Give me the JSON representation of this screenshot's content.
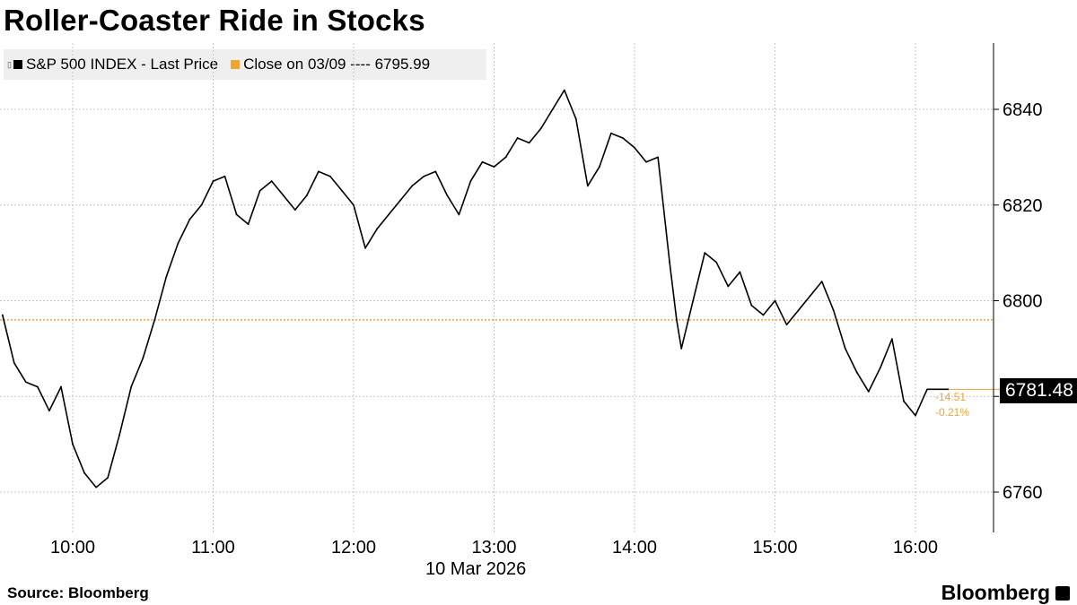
{
  "title": "Roller-Coaster Ride in Stocks",
  "legend": {
    "series_label": "S&P 500 INDEX - Last Price",
    "close_label": "Close on 03/09 ---- 6795.99"
  },
  "colors": {
    "series": "#000000",
    "close_line": "#f2a332",
    "grid": "#c8c8c8"
  },
  "footer": {
    "source": "Source: Bloomberg",
    "brand": "Bloomberg"
  },
  "last_price_label": "6781.48",
  "change_abs": "-14.51",
  "change_pct": "-0.21%",
  "chart_data": {
    "type": "line",
    "date_label": "10 Mar 2026",
    "x_ticks": [
      "10:00",
      "11:00",
      "12:00",
      "13:00",
      "14:00",
      "15:00",
      "16:00"
    ],
    "y_ticks": [
      6760,
      6780,
      6800,
      6820,
      6840
    ],
    "xlim": [
      "09:30",
      "16:30"
    ],
    "ylim": [
      6752,
      6855
    ],
    "grid": true,
    "legend_position": "top-left",
    "prev_close": 6795.99,
    "last_price": 6781.48,
    "series": [
      {
        "name": "S&P 500 INDEX - Last Price",
        "x": [
          "09:30",
          "09:35",
          "09:40",
          "09:45",
          "09:50",
          "09:55",
          "10:00",
          "10:05",
          "10:10",
          "10:15",
          "10:20",
          "10:25",
          "10:30",
          "10:35",
          "10:40",
          "10:45",
          "10:50",
          "10:55",
          "11:00",
          "11:05",
          "11:10",
          "11:15",
          "11:20",
          "11:25",
          "11:30",
          "11:35",
          "11:40",
          "11:45",
          "11:50",
          "11:55",
          "12:00",
          "12:05",
          "12:10",
          "12:15",
          "12:20",
          "12:25",
          "12:30",
          "12:35",
          "12:40",
          "12:45",
          "12:50",
          "12:55",
          "13:00",
          "13:05",
          "13:10",
          "13:15",
          "13:20",
          "13:25",
          "13:30",
          "13:35",
          "13:40",
          "13:45",
          "13:50",
          "13:55",
          "14:00",
          "14:05",
          "14:10",
          "14:15",
          "14:18",
          "14:20",
          "14:25",
          "14:30",
          "14:35",
          "14:40",
          "14:45",
          "14:50",
          "14:55",
          "15:00",
          "15:05",
          "15:10",
          "15:15",
          "15:20",
          "15:25",
          "15:30",
          "15:35",
          "15:40",
          "15:45",
          "15:50",
          "15:55",
          "16:00",
          "16:05"
        ],
        "values": [
          6797,
          6787,
          6783,
          6782,
          6777,
          6782,
          6770,
          6764,
          6761,
          6763,
          6772,
          6782,
          6788,
          6796,
          6805,
          6812,
          6817,
          6820,
          6825,
          6826,
          6818,
          6816,
          6823,
          6825,
          6822,
          6819,
          6822,
          6827,
          6826,
          6823,
          6820,
          6811,
          6815,
          6818,
          6821,
          6824,
          6826,
          6827,
          6822,
          6818,
          6825,
          6829,
          6828,
          6830,
          6834,
          6833,
          6836,
          6840,
          6844,
          6838,
          6824,
          6828,
          6835,
          6834,
          6832,
          6829,
          6830,
          6808,
          6796,
          6790,
          6800,
          6810,
          6808,
          6803,
          6806,
          6799,
          6797,
          6800,
          6795,
          6798,
          6801,
          6804,
          6798,
          6790,
          6785,
          6781,
          6786,
          6792,
          6779,
          6776,
          6781.48
        ]
      }
    ]
  }
}
